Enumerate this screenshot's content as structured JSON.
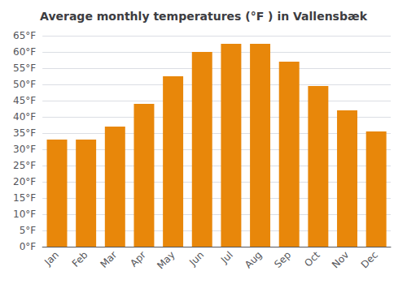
{
  "chart_data": {
    "type": "bar",
    "title": "Average monthly temperatures (°F ) in Vallensbæk",
    "categories": [
      "Jan",
      "Feb",
      "Mar",
      "Apr",
      "May",
      "Jun",
      "Jul",
      "Aug",
      "Sep",
      "Oct",
      "Nov",
      "Dec"
    ],
    "values": [
      33,
      33,
      37,
      44,
      52.5,
      60,
      62.5,
      62.5,
      57,
      49.5,
      42,
      35.5
    ],
    "color": "#E8870A",
    "ylim": [
      0,
      65
    ],
    "yticks": [
      {
        "value": 0,
        "label": "0°F"
      },
      {
        "value": 5,
        "label": "5°F"
      },
      {
        "value": 10,
        "label": "10°F"
      },
      {
        "value": 15,
        "label": "15°F"
      },
      {
        "value": 20,
        "label": "20°F"
      },
      {
        "value": 25,
        "label": "25°F"
      },
      {
        "value": 30,
        "label": "30°F"
      },
      {
        "value": 35,
        "label": "35°F"
      },
      {
        "value": 40,
        "label": "40°F"
      },
      {
        "value": 45,
        "label": "45°F"
      },
      {
        "value": 50,
        "label": "50°F"
      },
      {
        "value": 55,
        "label": "55°F"
      },
      {
        "value": 60,
        "label": "60°F"
      },
      {
        "value": 65,
        "label": "65°F"
      }
    ],
    "grid": true
  }
}
